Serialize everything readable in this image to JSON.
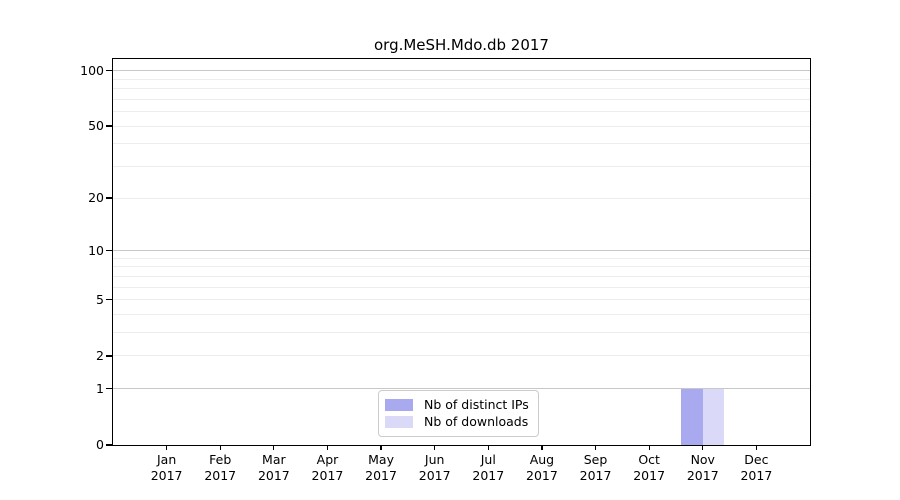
{
  "chart_data": {
    "type": "bar",
    "title": "org.MeSH.Mdo.db 2017",
    "x_months": [
      "Jan",
      "Feb",
      "Mar",
      "Apr",
      "May",
      "Jun",
      "Jul",
      "Aug",
      "Sep",
      "Oct",
      "Nov",
      "Dec"
    ],
    "x_year": "2017",
    "series": [
      {
        "name": "Nb of distinct IPs",
        "color": "#a9a9f0",
        "values": [
          0,
          0,
          0,
          0,
          0,
          0,
          0,
          0,
          0,
          0,
          1,
          0
        ]
      },
      {
        "name": "Nb of downloads",
        "color": "#dadaf8",
        "values": [
          0,
          0,
          0,
          0,
          0,
          0,
          0,
          0,
          0,
          0,
          1,
          0
        ]
      }
    ],
    "ylabel": "",
    "xlabel": "",
    "y_scale": "log1p",
    "ylim": [
      0,
      115.7
    ],
    "yticks": [
      100,
      50,
      20,
      10,
      5,
      2,
      1,
      0
    ],
    "grid_major_values": [
      1,
      10,
      100
    ],
    "grid_minor_values": [
      2,
      3,
      4,
      5,
      6,
      7,
      8,
      9,
      20,
      30,
      40,
      50,
      60,
      70,
      80,
      90
    ],
    "legend_position": "bottom-center-inside",
    "colors": {
      "grid_major": "#c8c8c8",
      "grid_minor": "#ededed",
      "axis": "#000000"
    }
  }
}
